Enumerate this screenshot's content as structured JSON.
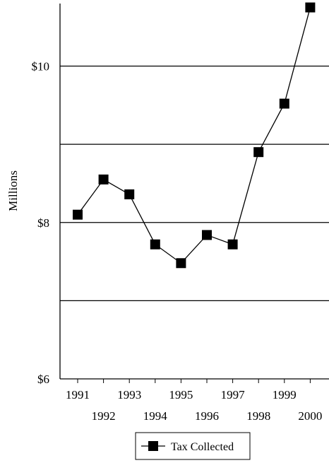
{
  "chart_data": {
    "type": "line",
    "title": "",
    "xlabel": "",
    "ylabel": "Millions",
    "ylim": [
      6,
      10.8
    ],
    "yticks": [
      {
        "value": 6,
        "label": "$6"
      },
      {
        "value": 8,
        "label": "$8"
      },
      {
        "value": 10,
        "label": "$10"
      }
    ],
    "gridlines_y": [
      7,
      8,
      9,
      10
    ],
    "grid": true,
    "categories": [
      "1991",
      "1992",
      "1993",
      "1994",
      "1995",
      "1996",
      "1997",
      "1998",
      "1999",
      "2000"
    ],
    "series": [
      {
        "name": "Tax Collected",
        "color": "#000000",
        "marker": "square",
        "values": [
          8.1,
          8.55,
          8.36,
          7.72,
          7.48,
          7.84,
          7.72,
          8.9,
          9.52,
          10.75
        ]
      }
    ],
    "legend": {
      "position": "bottom-center",
      "label": "Tax Collected"
    }
  }
}
